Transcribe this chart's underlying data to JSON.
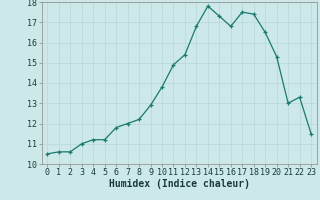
{
  "x": [
    0,
    1,
    2,
    3,
    4,
    5,
    6,
    7,
    8,
    9,
    10,
    11,
    12,
    13,
    14,
    15,
    16,
    17,
    18,
    19,
    20,
    21,
    22,
    23
  ],
  "y": [
    10.5,
    10.6,
    10.6,
    11.0,
    11.2,
    11.2,
    11.8,
    12.0,
    12.2,
    12.9,
    13.8,
    14.9,
    15.4,
    16.8,
    17.8,
    17.3,
    16.8,
    17.5,
    17.4,
    16.5,
    15.3,
    13.0,
    13.3,
    11.5
  ],
  "xlim": [
    -0.5,
    23.5
  ],
  "ylim": [
    10,
    18
  ],
  "yticks": [
    10,
    11,
    12,
    13,
    14,
    15,
    16,
    17,
    18
  ],
  "xticks": [
    0,
    1,
    2,
    3,
    4,
    5,
    6,
    7,
    8,
    9,
    10,
    11,
    12,
    13,
    14,
    15,
    16,
    17,
    18,
    19,
    20,
    21,
    22,
    23
  ],
  "xlabel": "Humidex (Indice chaleur)",
  "line_color": "#1a7a6e",
  "marker": "+",
  "bg_color": "#cce8e8",
  "grid_color": "#b8d8d8",
  "label_fontsize": 7,
  "tick_fontsize": 6
}
